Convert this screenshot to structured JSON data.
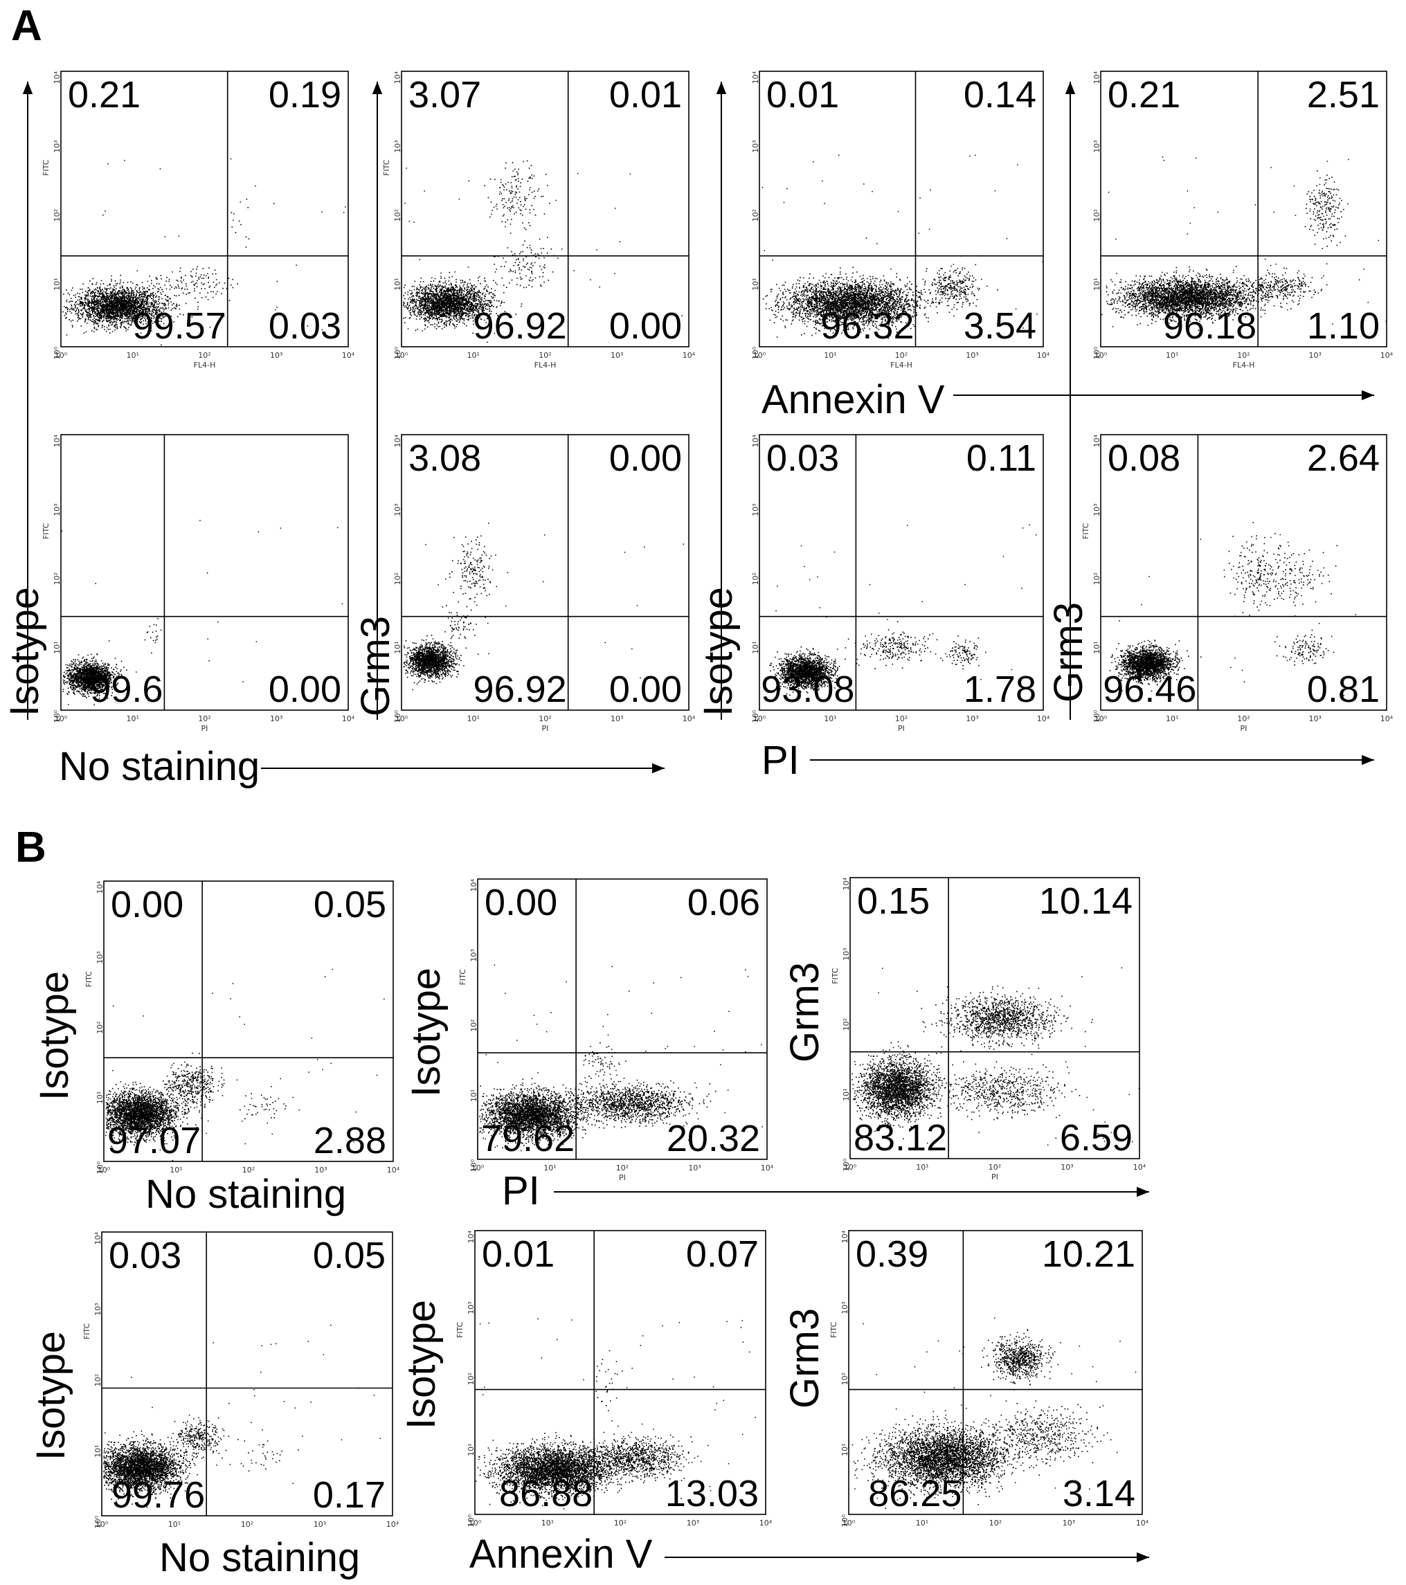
{
  "figure": {
    "panel_labels": [
      "A",
      "B"
    ],
    "axis_ticks": [
      "10⁰",
      "10¹",
      "10²",
      "10³",
      "10⁴"
    ]
  },
  "panelA": {
    "plots": [
      {
        "channel_x": "FL4-H",
        "channel_y": "FITC",
        "quadrants": {
          "ul": "0.21",
          "ur": "0.19",
          "ll": "99.57",
          "lr": "0.03"
        }
      },
      {
        "channel_x": "FL4-H",
        "channel_y": "FITC",
        "quadrants": {
          "ul": "3.07",
          "ur": "0.01",
          "ll": "96.92",
          "lr": "0.00"
        }
      },
      {
        "channel_x": "FL4-H",
        "channel_y": "",
        "quadrants": {
          "ul": "0.01",
          "ur": "0.14",
          "ll": "96.32",
          "lr": "3.54"
        }
      },
      {
        "channel_x": "FL4-H",
        "channel_y": "",
        "quadrants": {
          "ul": "0.21",
          "ur": "2.51",
          "ll": "96.18",
          "lr": "1.10"
        }
      },
      {
        "channel_x": "PI",
        "channel_y": "FITC",
        "quadrants": {
          "ul": "",
          "ur": "",
          "ll": "99.6",
          "lr": "0.00"
        }
      },
      {
        "channel_x": "PI",
        "channel_y": "",
        "quadrants": {
          "ul": "3.08",
          "ur": "0.00",
          "ll": "96.92",
          "lr": "0.00"
        }
      },
      {
        "channel_x": "PI",
        "channel_y": "",
        "quadrants": {
          "ul": "0.03",
          "ur": "0.11",
          "ll": "93.08",
          "lr": "1.78"
        }
      },
      {
        "channel_x": "PI",
        "channel_y": "FITC",
        "quadrants": {
          "ul": "0.08",
          "ur": "2.64",
          "ll": "96.46",
          "lr": "0.81"
        }
      }
    ],
    "axis_titles": {
      "annexin": "Annexin V",
      "no_staining": "No staining",
      "pi": "PI",
      "isotype_left": "Isotype",
      "grm3_left": "Grm3",
      "isotype_right": "Isotype",
      "grm3_right": "Grm3"
    }
  },
  "panelB": {
    "plots": [
      {
        "channel_x": "",
        "channel_y": "FITC",
        "quadrants": {
          "ul": "0.00",
          "ur": "0.05",
          "ll": "97.07",
          "lr": "2.88"
        }
      },
      {
        "channel_x": "PI",
        "channel_y": "FITC",
        "quadrants": {
          "ul": "0.00",
          "ur": "0.06",
          "ll": "79.62",
          "lr": "20.32"
        }
      },
      {
        "channel_x": "PI",
        "channel_y": "FITC",
        "quadrants": {
          "ul": "0.15",
          "ur": "10.14",
          "ll": "83.12",
          "lr": "6.59"
        }
      },
      {
        "channel_x": "",
        "channel_y": "FITC",
        "quadrants": {
          "ul": "0.03",
          "ur": "0.05",
          "ll": "99.76",
          "lr": "0.17"
        }
      },
      {
        "channel_x": "",
        "channel_y": "FITC",
        "quadrants": {
          "ul": "0.01",
          "ur": "0.07",
          "ll": "86.88",
          "lr": "13.03"
        }
      },
      {
        "channel_x": "",
        "channel_y": "FITC",
        "quadrants": {
          "ul": "0.39",
          "ur": "10.21",
          "ll": "86.25",
          "lr": "3.14"
        }
      }
    ],
    "axis_titles": {
      "no_staining_1": "No staining",
      "pi": "PI",
      "no_staining_2": "No staining",
      "annexin": "Annexin V",
      "isotype_1": "Isotype",
      "isotype_2": "Isotype",
      "grm3_1": "Grm3",
      "isotype_3": "Isotype",
      "isotype_4": "Isotype",
      "grm3_2": "Grm3"
    }
  }
}
